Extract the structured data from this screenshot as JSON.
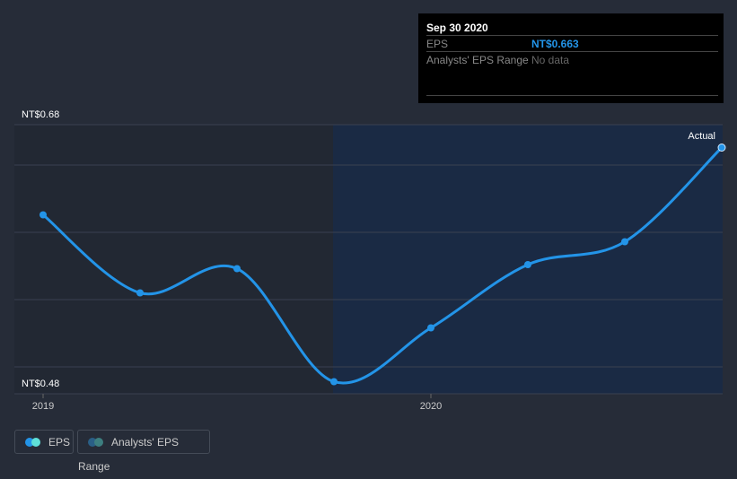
{
  "chart_data": {
    "type": "line",
    "x": [
      "Dec 2018",
      "Mar 2019",
      "Jun 2019",
      "Sep 2019",
      "Dec 2019",
      "Mar 2020",
      "Jun 2020",
      "Sep 2020"
    ],
    "series": [
      {
        "name": "EPS",
        "values": [
          0.613,
          0.555,
          0.573,
          0.489,
          0.529,
          0.576,
          0.593,
          0.663
        ]
      }
    ],
    "ylim": [
      0.48,
      0.68
    ],
    "y_tick_labels": [
      "NT$0.68",
      "NT$0.48"
    ],
    "x_tick_labels": [
      "2019",
      "2020"
    ],
    "annotation": "Actual",
    "grid": true,
    "legend": "bottom-left"
  },
  "tooltip": {
    "date": "Sep 30 2020",
    "eps_label": "EPS",
    "eps_value": "NT$0.663",
    "range_label": "Analysts' EPS Range",
    "range_value": "No data"
  },
  "legend": {
    "eps": "EPS",
    "range": "Analysts' EPS Range"
  },
  "colors": {
    "line": "#2394e8",
    "shade": "#1a2a44"
  }
}
